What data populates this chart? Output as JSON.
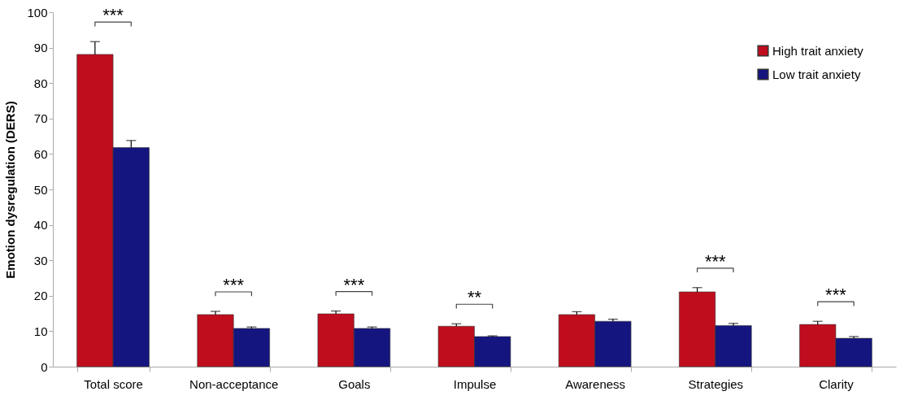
{
  "chart_data": {
    "type": "bar",
    "ylabel": "Emotion dysregulation (DERS)",
    "categories": [
      "Total score",
      "Non-acceptance",
      "Goals",
      "Impulse",
      "Awareness",
      "Strategies",
      "Clarity"
    ],
    "series": [
      {
        "name": "High trait anxiety",
        "color": "#c00d1e",
        "values": [
          88.1,
          14.7,
          14.9,
          11.4,
          14.7,
          21.1,
          11.9
        ],
        "errors": [
          [
            88.1,
            91.7
          ],
          [
            14.7,
            15.6
          ],
          [
            14.9,
            15.7
          ],
          [
            11.4,
            12.1
          ],
          [
            14.7,
            15.5
          ],
          [
            21.1,
            22.3
          ],
          [
            11.9,
            12.8
          ]
        ]
      },
      {
        "name": "Low trait anxiety",
        "color": "#15157f",
        "values": [
          61.8,
          10.8,
          10.8,
          8.5,
          12.8,
          11.6,
          8.0
        ],
        "errors": [
          [
            61.8,
            63.8
          ],
          [
            10.8,
            11.2
          ],
          [
            10.8,
            11.2
          ],
          [
            8.5,
            8.7
          ],
          [
            12.8,
            13.4
          ],
          [
            11.6,
            12.2
          ],
          [
            8.0,
            8.5
          ]
        ]
      }
    ],
    "ylim": [
      0,
      100
    ],
    "yticks": [
      0,
      10,
      20,
      30,
      40,
      50,
      60,
      70,
      80,
      90,
      100
    ],
    "legend": "top right",
    "annotations": [
      "***",
      "***",
      "***",
      "**",
      "***",
      "***"
    ]
  }
}
